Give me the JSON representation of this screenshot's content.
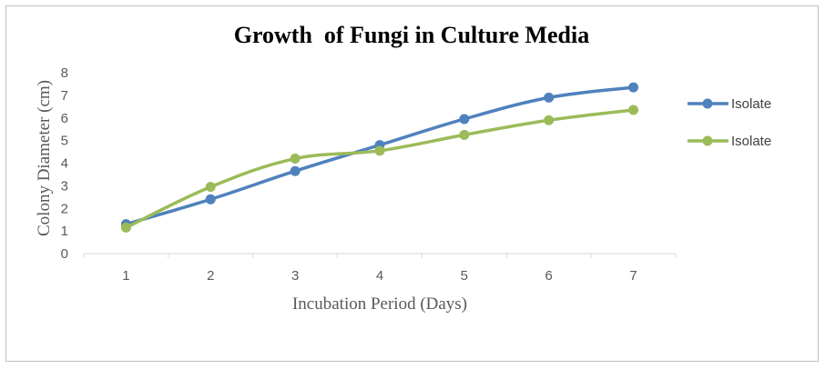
{
  "chart_data": {
    "type": "line",
    "title": "Growth  of Fungi in Culture Media",
    "xlabel": "Incubation Period (Days)",
    "ylabel": "Colony Diameter (cm)",
    "categories": [
      "1",
      "2",
      "3",
      "4",
      "5",
      "6",
      "7"
    ],
    "ylim": [
      0,
      8
    ],
    "yticks": [
      "0",
      "1",
      "2",
      "3",
      "4",
      "5",
      "6",
      "7",
      "8"
    ],
    "grid": false,
    "legend_position": "right",
    "series": [
      {
        "name": "Isolate",
        "color": "#4f81bd",
        "values": [
          1.3,
          2.4,
          3.65,
          4.8,
          5.95,
          6.9,
          7.35
        ]
      },
      {
        "name": "Isolate",
        "color": "#9bbb59",
        "values": [
          1.15,
          2.95,
          4.2,
          4.55,
          5.25,
          5.9,
          6.35
        ]
      }
    ]
  }
}
